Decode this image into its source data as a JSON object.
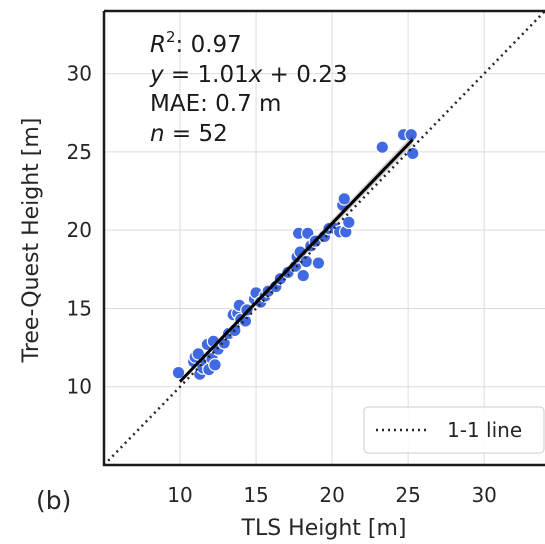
{
  "panel_label": "(b)",
  "chart_data": {
    "type": "scatter",
    "xlabel": "TLS Height [m]",
    "ylabel": "Tree-Quest Height [m]",
    "xlim": [
      5,
      34
    ],
    "ylim": [
      5,
      34
    ],
    "xticks": [
      10,
      15,
      20,
      25,
      30
    ],
    "yticks": [
      10,
      15,
      20,
      25,
      30
    ],
    "grid": true,
    "point_color": "#4169e1",
    "fit_line_color": "#000000",
    "fit": {
      "slope": 1.01,
      "intercept": 0.23,
      "x_range": [
        10,
        25.3
      ]
    },
    "annotations": {
      "r2_label": "R",
      "r2_sup": "2",
      "r2_value": ": 0.97",
      "eq_y": "y",
      "eq_mid": " = 1.01",
      "eq_x": "x",
      "eq_tail": " + 0.23",
      "mae": "MAE: 0.7 m",
      "n_var": "n",
      "n_value": " = 52"
    },
    "legend": {
      "position": "bottom-right",
      "entries": [
        "1-1 line"
      ]
    },
    "points": [
      [
        9.9,
        10.9
      ],
      [
        10.9,
        11.6
      ],
      [
        11.0,
        11.9
      ],
      [
        11.2,
        12.1
      ],
      [
        11.3,
        10.8
      ],
      [
        11.5,
        11.2
      ],
      [
        11.7,
        11.6
      ],
      [
        11.8,
        12.7
      ],
      [
        11.9,
        11.1
      ],
      [
        12.1,
        11.8
      ],
      [
        12.2,
        12.9
      ],
      [
        12.3,
        11.4
      ],
      [
        12.5,
        12.4
      ],
      [
        12.9,
        12.8
      ],
      [
        13.2,
        13.4
      ],
      [
        13.5,
        14.6
      ],
      [
        13.6,
        13.6
      ],
      [
        13.8,
        14.7
      ],
      [
        13.9,
        15.2
      ],
      [
        14.0,
        14.3
      ],
      [
        14.3,
        14.2
      ],
      [
        14.4,
        14.9
      ],
      [
        14.9,
        15.6
      ],
      [
        15.0,
        16.0
      ],
      [
        15.3,
        15.4
      ],
      [
        15.6,
        15.8
      ],
      [
        15.8,
        16.1
      ],
      [
        16.3,
        16.4
      ],
      [
        16.6,
        16.9
      ],
      [
        17.1,
        17.3
      ],
      [
        17.6,
        17.7
      ],
      [
        17.7,
        18.3
      ],
      [
        17.8,
        19.8
      ],
      [
        17.9,
        18.6
      ],
      [
        18.1,
        17.1
      ],
      [
        18.3,
        18.0
      ],
      [
        18.4,
        19.8
      ],
      [
        18.6,
        19.0
      ],
      [
        18.9,
        19.3
      ],
      [
        19.1,
        17.9
      ],
      [
        19.5,
        19.6
      ],
      [
        19.8,
        20.1
      ],
      [
        20.2,
        20.1
      ],
      [
        20.5,
        19.9
      ],
      [
        20.7,
        21.6
      ],
      [
        20.8,
        22.0
      ],
      [
        20.9,
        19.9
      ],
      [
        21.1,
        20.5
      ],
      [
        23.3,
        25.3
      ],
      [
        24.7,
        26.1
      ],
      [
        25.2,
        26.1
      ],
      [
        25.3,
        24.9
      ]
    ]
  }
}
